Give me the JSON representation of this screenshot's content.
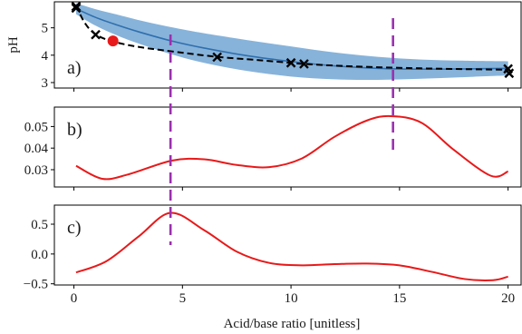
{
  "chart_data": {
    "type": "line",
    "xlabel": "Acid/base ratio [unitless]",
    "xlim": [
      -0.9,
      20.6
    ],
    "xticks": [
      0,
      5,
      10,
      15,
      20
    ],
    "vlines": [
      4.45,
      14.7
    ],
    "vline_color": "#9b30b0",
    "panels": [
      {
        "label": "a)",
        "ylabel": "pH",
        "ylim": [
          2.8,
          5.95
        ],
        "yticks": [
          3,
          4,
          5
        ],
        "band": {
          "color": "#7aabd6",
          "x": [
            0.1,
            1,
            2,
            3,
            4.5,
            6,
            8,
            10,
            12,
            14,
            16,
            18,
            20
          ],
          "lower": [
            5.5,
            5.08,
            4.72,
            4.42,
            4.03,
            3.72,
            3.42,
            3.22,
            3.12,
            3.1,
            3.14,
            3.2,
            3.26
          ],
          "upper": [
            5.9,
            5.68,
            5.48,
            5.28,
            5.02,
            4.8,
            4.55,
            4.32,
            4.1,
            3.94,
            3.84,
            3.8,
            3.78
          ],
          "mean": [
            5.7,
            5.38,
            5.1,
            4.85,
            4.52,
            4.26,
            3.98,
            3.77,
            3.61,
            3.52,
            3.49,
            3.5,
            3.52
          ]
        },
        "dashed": {
          "x": [
            0.1,
            0.5,
            1,
            1.8,
            3,
            4.5,
            6.6,
            8.5,
            10,
            10.6,
            12,
            14,
            16,
            18,
            20
          ],
          "y": [
            5.82,
            5.18,
            4.76,
            4.5,
            4.3,
            4.14,
            3.94,
            3.82,
            3.72,
            3.68,
            3.62,
            3.56,
            3.52,
            3.49,
            3.47
          ]
        },
        "observations": {
          "x": [
            0.1,
            0.1,
            1.0,
            6.6,
            10.0,
            10.6,
            20.0,
            20.05
          ],
          "y": [
            5.78,
            5.72,
            4.75,
            3.93,
            3.72,
            3.68,
            3.5,
            3.34
          ]
        },
        "next_point": {
          "x": 1.8,
          "y": 4.52,
          "color": "#e8191a"
        }
      },
      {
        "label": "b)",
        "ylim": [
          0.022,
          0.059
        ],
        "yticks": [
          0.03,
          0.04,
          0.05
        ],
        "ytick_labels": [
          "0.03",
          "0.04",
          "0.05"
        ],
        "curve": {
          "color": "#e8191a",
          "x": [
            0.1,
            1.3,
            2.5,
            4.5,
            6.0,
            7.5,
            9.0,
            10.5,
            12.0,
            13.5,
            14.6,
            16.0,
            17.5,
            19.2,
            20.0
          ],
          "y": [
            0.0318,
            0.0258,
            0.0278,
            0.0342,
            0.0348,
            0.0322,
            0.0312,
            0.0352,
            0.0452,
            0.0528,
            0.0548,
            0.0518,
            0.0392,
            0.0272,
            0.0292
          ]
        }
      },
      {
        "label": "c)",
        "ylim": [
          -0.52,
          0.82
        ],
        "yticks": [
          -0.5,
          0.0,
          0.5
        ],
        "ytick_labels": [
          "−0.5",
          "0.0",
          "0.5"
        ],
        "curve": {
          "color": "#e8191a",
          "x": [
            0.1,
            1.5,
            3.0,
            4.45,
            6.0,
            7.5,
            9.0,
            10.5,
            12.0,
            13.5,
            15.0,
            16.5,
            18.0,
            19.3,
            20.0
          ],
          "y": [
            -0.31,
            -0.12,
            0.3,
            0.69,
            0.4,
            0.04,
            -0.15,
            -0.19,
            -0.17,
            -0.16,
            -0.19,
            -0.3,
            -0.42,
            -0.44,
            -0.38
          ]
        }
      }
    ]
  }
}
